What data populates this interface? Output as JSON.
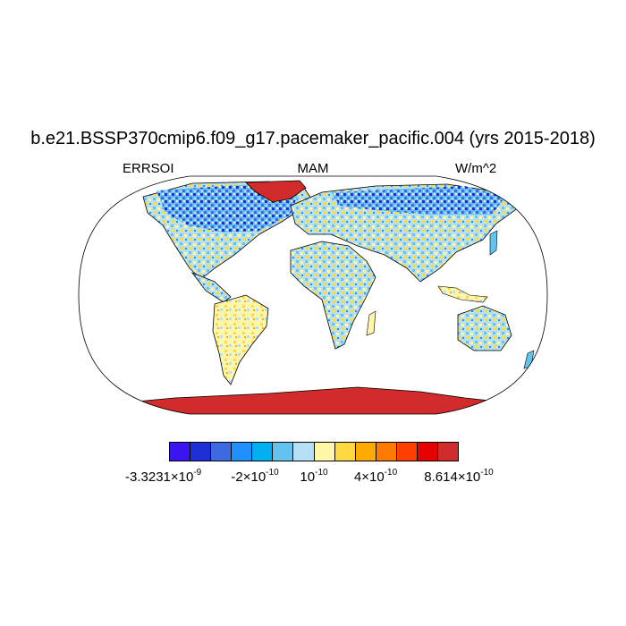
{
  "title": "b.e21.BSSP370cmip6.f09_g17.pacemaker_pacific.004 (yrs 2015-2018)",
  "left_string": "ERRSOI",
  "center_string": "MAM",
  "right_string": "W/m^2",
  "colorbar": {
    "colors": [
      "#3b14f0",
      "#1f2fd7",
      "#3d6ae0",
      "#1e90ff",
      "#00b0f0",
      "#63c3ec",
      "#b4e1f5",
      "#fff6a8",
      "#ffd940",
      "#ffaa00",
      "#ff7a00",
      "#ff3f00",
      "#e60000",
      "#d22b2b"
    ],
    "labels": [
      {
        "mantissa": "-3.3231×10",
        "exponent": "-9"
      },
      {
        "mantissa": "-2×10",
        "exponent": "-10"
      },
      {
        "mantissa": "10",
        "exponent": "-10"
      },
      {
        "mantissa": "4×10",
        "exponent": "-10"
      },
      {
        "mantissa": "8.614×10",
        "exponent": "-10"
      }
    ]
  },
  "map": {
    "projection": "Robinson",
    "land_fill_default": "#b4e1f5",
    "greenland_color": "#d22b2b",
    "antarctica_color": "#d22b2b"
  }
}
